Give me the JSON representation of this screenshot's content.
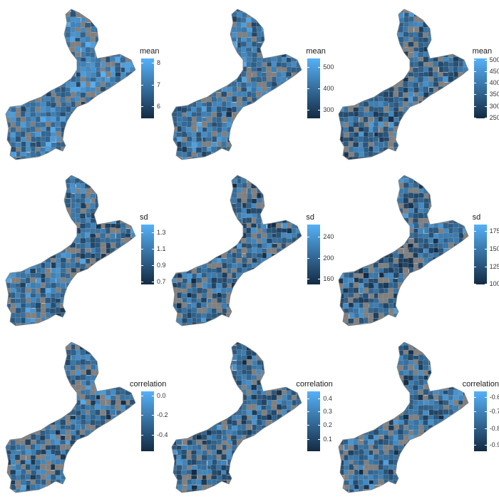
{
  "color_scale": {
    "low": "#132b43",
    "high": "#56b1f7",
    "na": "#808080"
  },
  "panels": [
    {
      "row": 0,
      "col": 0,
      "legend_title": "mean",
      "tick_labels": [
        "8",
        "7",
        "6"
      ],
      "tick_fracs": [
        0.93,
        0.56,
        0.2
      ],
      "tone_bias": 0.7
    },
    {
      "row": 0,
      "col": 1,
      "legend_title": "mean",
      "tick_labels": [
        "500",
        "400",
        "300"
      ],
      "tick_fracs": [
        0.86,
        0.5,
        0.14
      ],
      "tone_bias": 0.55
    },
    {
      "row": 0,
      "col": 2,
      "legend_title": "mean",
      "tick_labels": [
        "500",
        "450",
        "400",
        "350",
        "300",
        "250"
      ],
      "tick_fracs": [
        0.98,
        0.79,
        0.6,
        0.4,
        0.2,
        0.01
      ],
      "tone_bias": 0.35
    },
    {
      "row": 1,
      "col": 0,
      "legend_title": "sd",
      "tick_labels": [
        "1.3",
        "1.1",
        "0.9",
        "0.7"
      ],
      "tick_fracs": [
        0.87,
        0.6,
        0.33,
        0.05
      ],
      "tone_bias": 0.5
    },
    {
      "row": 1,
      "col": 1,
      "legend_title": "sd",
      "tick_labels": [
        "240",
        "200",
        "160"
      ],
      "tick_fracs": [
        0.8,
        0.45,
        0.1
      ],
      "tone_bias": 0.3
    },
    {
      "row": 1,
      "col": 2,
      "legend_title": "sd",
      "tick_labels": [
        "175",
        "150",
        "125",
        "100"
      ],
      "tick_fracs": [
        0.9,
        0.6,
        0.3,
        0.02
      ],
      "tone_bias": 0.3
    },
    {
      "row": 2,
      "col": 0,
      "legend_title": "correlation",
      "tick_labels": [
        "0.0",
        "-0.2",
        "-0.4"
      ],
      "tick_fracs": [
        0.92,
        0.6,
        0.27
      ],
      "tone_bias": 0.45
    },
    {
      "row": 2,
      "col": 1,
      "legend_title": "correlation",
      "tick_labels": [
        "0.4",
        "0.3",
        "0.2",
        "0.1"
      ],
      "tick_fracs": [
        0.88,
        0.66,
        0.44,
        0.2
      ],
      "tone_bias": 0.35
    },
    {
      "row": 2,
      "col": 2,
      "legend_title": "correlation",
      "tick_labels": [
        "-0.6",
        "-0.7",
        "-0.8",
        "-0.9"
      ],
      "tick_fracs": [
        0.9,
        0.66,
        0.38,
        0.1
      ],
      "tone_bias": 0.35
    }
  ]
}
